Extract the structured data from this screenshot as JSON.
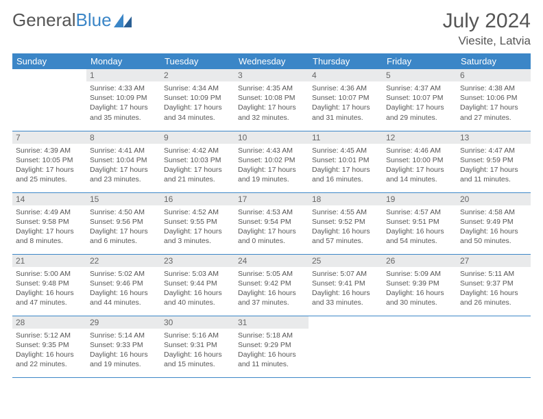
{
  "brand": {
    "part1": "General",
    "part2": "Blue"
  },
  "title": "July 2024",
  "location": "Viesite, Latvia",
  "colors": {
    "header_bg": "#3b86c7",
    "header_text": "#ffffff",
    "daynum_bg": "#e9eaeb",
    "text": "#555555",
    "border": "#3b86c7"
  },
  "weekdays": [
    "Sunday",
    "Monday",
    "Tuesday",
    "Wednesday",
    "Thursday",
    "Friday",
    "Saturday"
  ],
  "weeks": [
    [
      null,
      {
        "n": "1",
        "sr": "Sunrise: 4:33 AM",
        "ss": "Sunset: 10:09 PM",
        "dl": "Daylight: 17 hours and 35 minutes."
      },
      {
        "n": "2",
        "sr": "Sunrise: 4:34 AM",
        "ss": "Sunset: 10:09 PM",
        "dl": "Daylight: 17 hours and 34 minutes."
      },
      {
        "n": "3",
        "sr": "Sunrise: 4:35 AM",
        "ss": "Sunset: 10:08 PM",
        "dl": "Daylight: 17 hours and 32 minutes."
      },
      {
        "n": "4",
        "sr": "Sunrise: 4:36 AM",
        "ss": "Sunset: 10:07 PM",
        "dl": "Daylight: 17 hours and 31 minutes."
      },
      {
        "n": "5",
        "sr": "Sunrise: 4:37 AM",
        "ss": "Sunset: 10:07 PM",
        "dl": "Daylight: 17 hours and 29 minutes."
      },
      {
        "n": "6",
        "sr": "Sunrise: 4:38 AM",
        "ss": "Sunset: 10:06 PM",
        "dl": "Daylight: 17 hours and 27 minutes."
      }
    ],
    [
      {
        "n": "7",
        "sr": "Sunrise: 4:39 AM",
        "ss": "Sunset: 10:05 PM",
        "dl": "Daylight: 17 hours and 25 minutes."
      },
      {
        "n": "8",
        "sr": "Sunrise: 4:41 AM",
        "ss": "Sunset: 10:04 PM",
        "dl": "Daylight: 17 hours and 23 minutes."
      },
      {
        "n": "9",
        "sr": "Sunrise: 4:42 AM",
        "ss": "Sunset: 10:03 PM",
        "dl": "Daylight: 17 hours and 21 minutes."
      },
      {
        "n": "10",
        "sr": "Sunrise: 4:43 AM",
        "ss": "Sunset: 10:02 PM",
        "dl": "Daylight: 17 hours and 19 minutes."
      },
      {
        "n": "11",
        "sr": "Sunrise: 4:45 AM",
        "ss": "Sunset: 10:01 PM",
        "dl": "Daylight: 17 hours and 16 minutes."
      },
      {
        "n": "12",
        "sr": "Sunrise: 4:46 AM",
        "ss": "Sunset: 10:00 PM",
        "dl": "Daylight: 17 hours and 14 minutes."
      },
      {
        "n": "13",
        "sr": "Sunrise: 4:47 AM",
        "ss": "Sunset: 9:59 PM",
        "dl": "Daylight: 17 hours and 11 minutes."
      }
    ],
    [
      {
        "n": "14",
        "sr": "Sunrise: 4:49 AM",
        "ss": "Sunset: 9:58 PM",
        "dl": "Daylight: 17 hours and 8 minutes."
      },
      {
        "n": "15",
        "sr": "Sunrise: 4:50 AM",
        "ss": "Sunset: 9:56 PM",
        "dl": "Daylight: 17 hours and 6 minutes."
      },
      {
        "n": "16",
        "sr": "Sunrise: 4:52 AM",
        "ss": "Sunset: 9:55 PM",
        "dl": "Daylight: 17 hours and 3 minutes."
      },
      {
        "n": "17",
        "sr": "Sunrise: 4:53 AM",
        "ss": "Sunset: 9:54 PM",
        "dl": "Daylight: 17 hours and 0 minutes."
      },
      {
        "n": "18",
        "sr": "Sunrise: 4:55 AM",
        "ss": "Sunset: 9:52 PM",
        "dl": "Daylight: 16 hours and 57 minutes."
      },
      {
        "n": "19",
        "sr": "Sunrise: 4:57 AM",
        "ss": "Sunset: 9:51 PM",
        "dl": "Daylight: 16 hours and 54 minutes."
      },
      {
        "n": "20",
        "sr": "Sunrise: 4:58 AM",
        "ss": "Sunset: 9:49 PM",
        "dl": "Daylight: 16 hours and 50 minutes."
      }
    ],
    [
      {
        "n": "21",
        "sr": "Sunrise: 5:00 AM",
        "ss": "Sunset: 9:48 PM",
        "dl": "Daylight: 16 hours and 47 minutes."
      },
      {
        "n": "22",
        "sr": "Sunrise: 5:02 AM",
        "ss": "Sunset: 9:46 PM",
        "dl": "Daylight: 16 hours and 44 minutes."
      },
      {
        "n": "23",
        "sr": "Sunrise: 5:03 AM",
        "ss": "Sunset: 9:44 PM",
        "dl": "Daylight: 16 hours and 40 minutes."
      },
      {
        "n": "24",
        "sr": "Sunrise: 5:05 AM",
        "ss": "Sunset: 9:42 PM",
        "dl": "Daylight: 16 hours and 37 minutes."
      },
      {
        "n": "25",
        "sr": "Sunrise: 5:07 AM",
        "ss": "Sunset: 9:41 PM",
        "dl": "Daylight: 16 hours and 33 minutes."
      },
      {
        "n": "26",
        "sr": "Sunrise: 5:09 AM",
        "ss": "Sunset: 9:39 PM",
        "dl": "Daylight: 16 hours and 30 minutes."
      },
      {
        "n": "27",
        "sr": "Sunrise: 5:11 AM",
        "ss": "Sunset: 9:37 PM",
        "dl": "Daylight: 16 hours and 26 minutes."
      }
    ],
    [
      {
        "n": "28",
        "sr": "Sunrise: 5:12 AM",
        "ss": "Sunset: 9:35 PM",
        "dl": "Daylight: 16 hours and 22 minutes."
      },
      {
        "n": "29",
        "sr": "Sunrise: 5:14 AM",
        "ss": "Sunset: 9:33 PM",
        "dl": "Daylight: 16 hours and 19 minutes."
      },
      {
        "n": "30",
        "sr": "Sunrise: 5:16 AM",
        "ss": "Sunset: 9:31 PM",
        "dl": "Daylight: 16 hours and 15 minutes."
      },
      {
        "n": "31",
        "sr": "Sunrise: 5:18 AM",
        "ss": "Sunset: 9:29 PM",
        "dl": "Daylight: 16 hours and 11 minutes."
      },
      null,
      null,
      null
    ]
  ]
}
